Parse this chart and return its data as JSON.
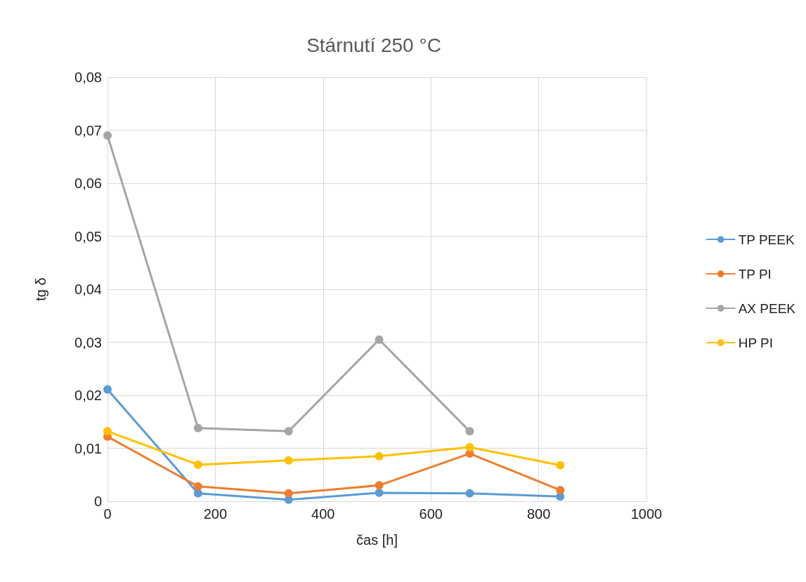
{
  "chart_data": {
    "type": "line",
    "title": "Stárnutí 250 °C",
    "xlabel": "čas [h]",
    "ylabel": "tg δ",
    "x": [
      0,
      168,
      336,
      504,
      672,
      840
    ],
    "series": [
      {
        "name": "TP PEEK",
        "color": "#5b9bd5",
        "values": [
          0.0211,
          0.0015,
          0.0003,
          0.0016,
          0.0015,
          0.0009
        ]
      },
      {
        "name": "TP PI",
        "color": "#ed7d31",
        "values": [
          0.0122,
          0.0028,
          0.0015,
          0.003,
          0.009,
          0.0021
        ]
      },
      {
        "name": "AX PEEK",
        "color": "#a5a5a5",
        "values": [
          0.069,
          0.0138,
          0.0132,
          0.0305,
          0.0132,
          null
        ]
      },
      {
        "name": "HP PI",
        "color": "#ffc000",
        "values": [
          0.0132,
          0.0069,
          0.0077,
          0.0085,
          0.0102,
          0.0068
        ]
      }
    ],
    "xlim": [
      0,
      1000
    ],
    "xticks": [
      0,
      200,
      400,
      600,
      800,
      1000
    ],
    "ylim": [
      0,
      0.08
    ],
    "yticks": [
      0,
      {
        "value": 0.01,
        "label": "0,01"
      },
      {
        "value": 0.02,
        "label": "0,02"
      },
      {
        "value": 0.03,
        "label": "0,03"
      },
      {
        "value": 0.04,
        "label": "0,04"
      },
      {
        "value": 0.05,
        "label": "0,05"
      },
      {
        "value": 0.06,
        "label": "0,06"
      },
      {
        "value": 0.07,
        "label": "0,07"
      },
      {
        "value": 0.08,
        "label": "0,08"
      }
    ],
    "grid": true,
    "legend": "right",
    "marker": "circle",
    "line_style": "solid"
  }
}
